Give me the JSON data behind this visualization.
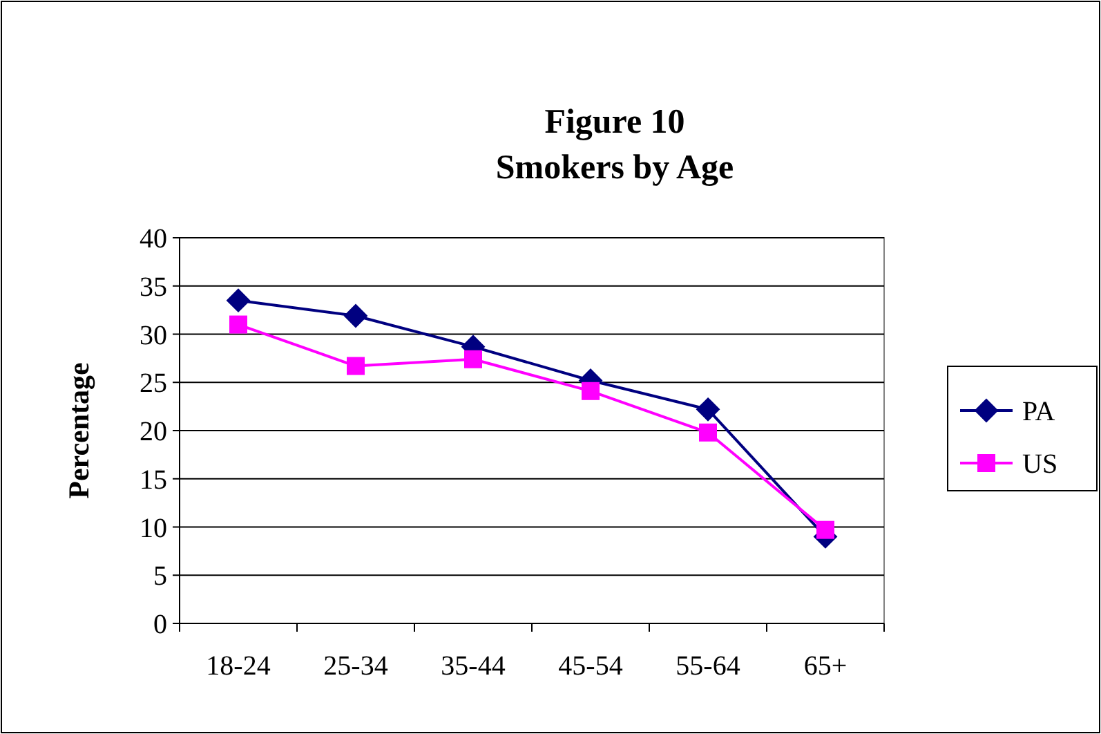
{
  "chart_data": {
    "type": "line",
    "title": "Figure 10",
    "subtitle": "Smokers by Age",
    "ylabel": "Percentage",
    "categories": [
      "18-24",
      "25-34",
      "35-44",
      "45-54",
      "55-64",
      "65+"
    ],
    "series": [
      {
        "name": "PA",
        "color": "#000080",
        "marker": "diamond",
        "values": [
          33.5,
          31.9,
          28.7,
          25.2,
          22.2,
          9.0
        ]
      },
      {
        "name": "US",
        "color": "#ff00ff",
        "marker": "square",
        "values": [
          31.0,
          26.7,
          27.4,
          24.1,
          19.8,
          9.7
        ]
      }
    ],
    "ylim": [
      0,
      40
    ],
    "yticks": [
      0,
      5,
      10,
      15,
      20,
      25,
      30,
      35,
      40
    ],
    "grid": "y",
    "legend": "right"
  }
}
